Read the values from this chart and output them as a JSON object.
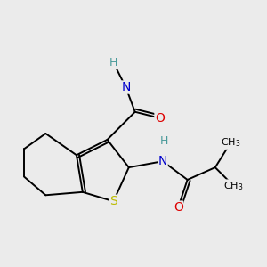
{
  "bg_color": "#ebebeb",
  "atom_colors": {
    "C": "#000000",
    "N": "#0000cc",
    "O": "#dd0000",
    "S": "#bbbb00",
    "H": "#4a9a9a"
  },
  "bond_color": "#000000",
  "figsize": [
    3.0,
    3.0
  ],
  "dpi": 100
}
